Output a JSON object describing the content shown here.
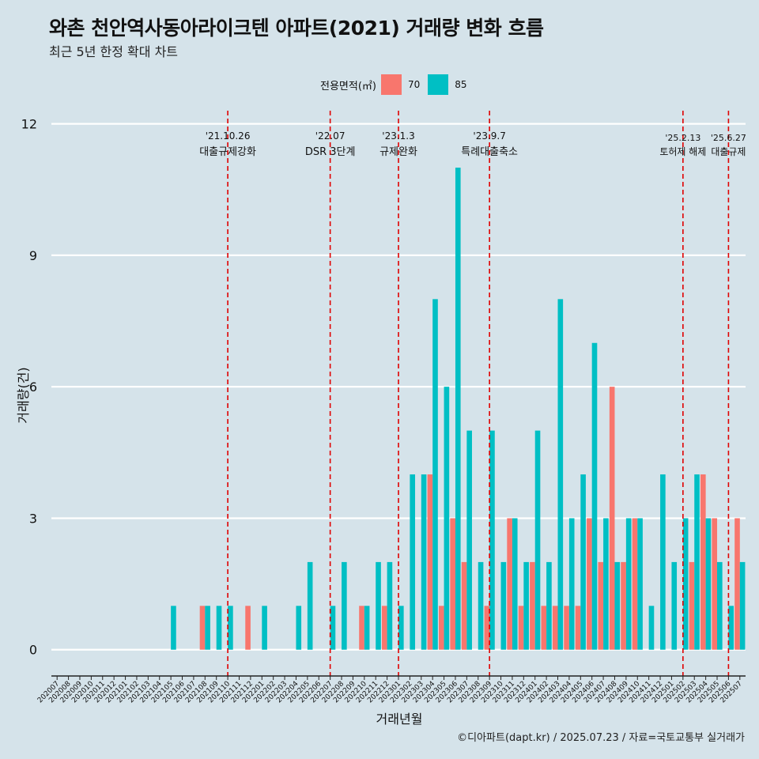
{
  "title": "와촌 천안역사동아라이크텐 아파트(2021) 거래량 변화 흐름",
  "subtitle": "최근 5년 한정 확대 차트",
  "legend": {
    "title": "전용면적(㎡)",
    "items": [
      {
        "label": "70",
        "color": "#F8766D"
      },
      {
        "label": "85",
        "color": "#00BFC4"
      }
    ]
  },
  "caption": "©디아파트(dapt.kr) / 2025.07.23 / 자료=국토교통부 실거래가",
  "chart_data": {
    "type": "bar",
    "title": "와촌 천안역사동아라이크텐 아파트(2021) 거래량 변화 흐름",
    "xlabel": "거래년월",
    "ylabel": "거래량(건)",
    "ylim": [
      -0.6,
      12.3
    ],
    "yticks": [
      0,
      3,
      6,
      9,
      12
    ],
    "categories": [
      "202007",
      "202008",
      "202009",
      "202010",
      "202011",
      "202012",
      "202101",
      "202102",
      "202103",
      "202104",
      "202105",
      "202106",
      "202107",
      "202108",
      "202109",
      "202110",
      "202111",
      "202112",
      "202201",
      "202202",
      "202203",
      "202204",
      "202205",
      "202206",
      "202207",
      "202208",
      "202209",
      "202210",
      "202211",
      "202212",
      "202301",
      "202302",
      "202303",
      "202304",
      "202305",
      "202306",
      "202307",
      "202308",
      "202309",
      "202310",
      "202311",
      "202312",
      "202401",
      "202402",
      "202403",
      "202404",
      "202405",
      "202406",
      "202407",
      "202408",
      "202409",
      "202410",
      "202411",
      "202412",
      "202501",
      "202502",
      "202503",
      "202504",
      "202505",
      "202506",
      "202507"
    ],
    "series": [
      {
        "name": "70",
        "color": "#F8766D",
        "values": [
          0,
          0,
          0,
          0,
          0,
          0,
          0,
          0,
          0,
          0,
          0,
          0,
          0,
          1,
          0,
          0,
          0,
          1,
          0,
          0,
          0,
          0,
          0,
          0,
          0,
          0,
          0,
          1,
          0,
          1,
          0,
          0,
          0,
          4,
          1,
          3,
          2,
          0,
          1,
          0,
          3,
          1,
          2,
          1,
          1,
          1,
          1,
          3,
          2,
          6,
          2,
          3,
          0,
          0,
          0,
          0,
          2,
          4,
          3,
          0,
          3
        ]
      },
      {
        "name": "85",
        "color": "#00BFC4",
        "values": [
          0,
          0,
          0,
          0,
          0,
          0,
          0,
          0,
          0,
          0,
          1,
          0,
          0,
          1,
          1,
          1,
          0,
          0,
          1,
          0,
          0,
          1,
          2,
          0,
          1,
          2,
          0,
          1,
          2,
          2,
          1,
          4,
          4,
          8,
          6,
          11,
          5,
          2,
          5,
          2,
          3,
          2,
          5,
          2,
          8,
          3,
          4,
          7,
          3,
          2,
          3,
          3,
          1,
          4,
          2,
          3,
          4,
          3,
          2,
          1,
          2
        ]
      }
    ],
    "annotations": [
      {
        "x": "202110",
        "date": "'21.10.26",
        "label": "대출규제강화"
      },
      {
        "x": "202207",
        "date": "'22.07",
        "label": "DSR 3단계"
      },
      {
        "x": "202301",
        "date": "'23.1.3",
        "label": "규제완화"
      },
      {
        "x": "202309",
        "date": "'23.9.7",
        "label": "특례대출축소"
      },
      {
        "x": "202502",
        "date": "'25.2.13",
        "label": "토허제 해제"
      },
      {
        "x": "202506",
        "date": "'25.6.27",
        "label": "대출규제"
      }
    ],
    "grid": true,
    "legend_position": "top"
  }
}
